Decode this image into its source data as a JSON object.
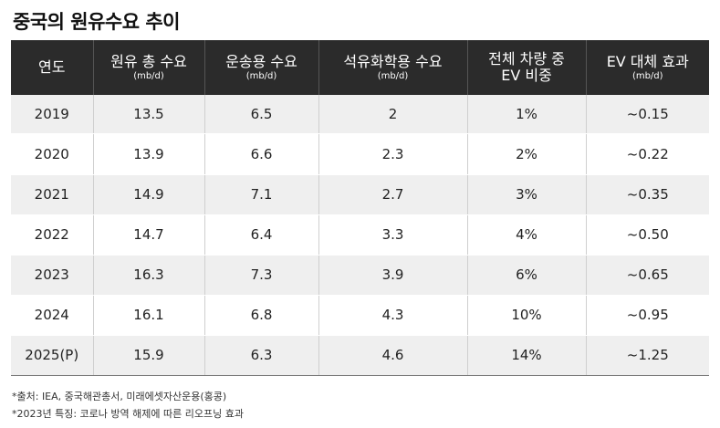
{
  "title": "중국의 원유수요 추이",
  "table": {
    "headers": [
      {
        "main": "연도",
        "sub": ""
      },
      {
        "main": "원유 총 수요",
        "sub": "(mb/d)"
      },
      {
        "main": "운송용 수요",
        "sub": "(mb/d)"
      },
      {
        "main": "석유화학용 수요",
        "sub": "(mb/d)"
      },
      {
        "main": "전체 차량 중",
        "sub": "EV 비중"
      },
      {
        "main": "EV 대체 효과",
        "sub": "(mb/d)"
      }
    ],
    "rows": [
      [
        "2019",
        "13.5",
        "6.5",
        "2",
        "1%",
        "~0.15"
      ],
      [
        "2020",
        "13.9",
        "6.6",
        "2.3",
        "2%",
        "~0.22"
      ],
      [
        "2021",
        "14.9",
        "7.1",
        "2.7",
        "3%",
        "~0.35"
      ],
      [
        "2022",
        "14.7",
        "6.4",
        "3.3",
        "4%",
        "~0.50"
      ],
      [
        "2023",
        "16.3",
        "7.3",
        "3.9",
        "6%",
        "~0.65"
      ],
      [
        "2024",
        "16.1",
        "6.8",
        "4.3",
        "10%",
        "~0.95"
      ],
      [
        "2025(P)",
        "15.9",
        "6.3",
        "4.6",
        "14%",
        "~1.25"
      ]
    ]
  },
  "notes": {
    "source": "*출처: IEA, 중국해관총서, 미래에셋자산운용(홍콩)",
    "note_2023": "*2023년 특징: 코로나 방역 해제에 따른 리오프닝 효과"
  }
}
